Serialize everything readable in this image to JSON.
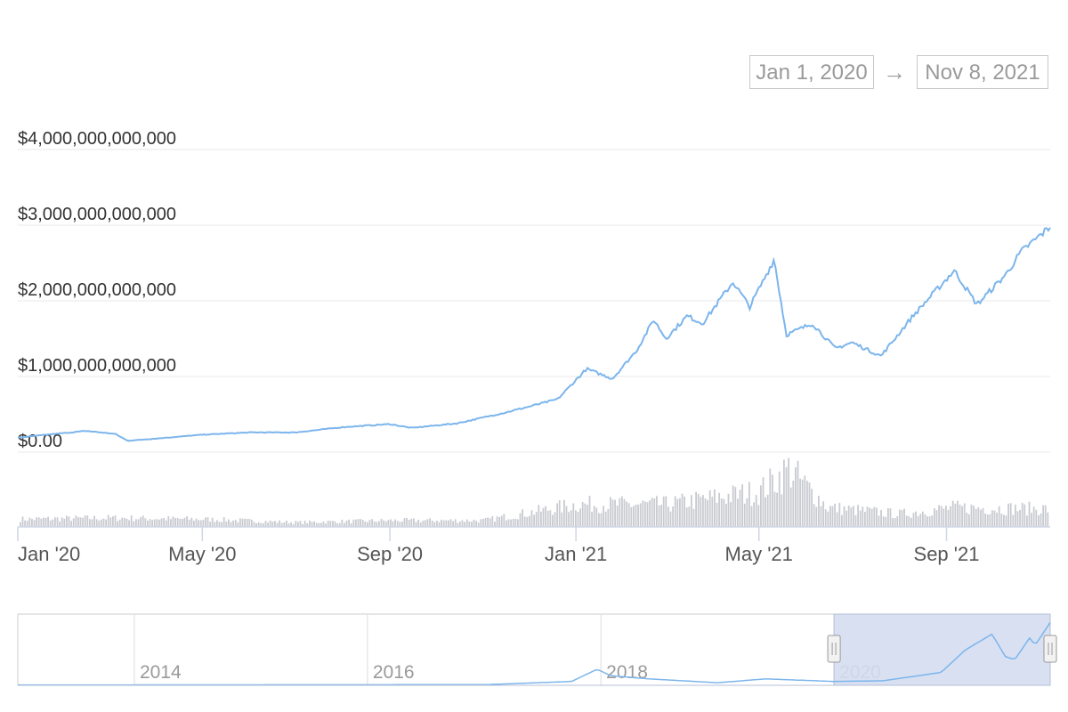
{
  "range_selector": {
    "start": "Jan 1, 2020",
    "arrow": "→",
    "end": "Nov 8, 2021"
  },
  "chart_data": {
    "type": "line",
    "title": "",
    "xlabel": "",
    "ylabel": "",
    "x_range": [
      "2020-01-01",
      "2021-11-08"
    ],
    "ylim": [
      0,
      4000000000000
    ],
    "grid": true,
    "y_ticks": [
      "$0.00",
      "$1,000,000,000,000",
      "$2,000,000,000,000",
      "$3,000,000,000,000",
      "$4,000,000,000,000"
    ],
    "x_ticks": [
      "Jan '20",
      "May '20",
      "Sep '20",
      "Jan '21",
      "May '21",
      "Sep '21"
    ],
    "series": [
      {
        "color": "#7cb5ec",
        "points": [
          [
            "2020-01-01",
            190000000000
          ],
          [
            "2020-01-20",
            230000000000
          ],
          [
            "2020-02-15",
            280000000000
          ],
          [
            "2020-03-05",
            240000000000
          ],
          [
            "2020-03-13",
            150000000000
          ],
          [
            "2020-04-01",
            180000000000
          ],
          [
            "2020-05-01",
            230000000000
          ],
          [
            "2020-06-01",
            260000000000
          ],
          [
            "2020-07-01",
            260000000000
          ],
          [
            "2020-08-01",
            330000000000
          ],
          [
            "2020-09-01",
            370000000000
          ],
          [
            "2020-09-15",
            320000000000
          ],
          [
            "2020-10-15",
            380000000000
          ],
          [
            "2020-11-15",
            520000000000
          ],
          [
            "2020-12-01",
            600000000000
          ],
          [
            "2020-12-20",
            700000000000
          ],
          [
            "2021-01-08",
            1100000000000
          ],
          [
            "2021-01-25",
            970000000000
          ],
          [
            "2021-02-10",
            1350000000000
          ],
          [
            "2021-02-21",
            1750000000000
          ],
          [
            "2021-03-01",
            1500000000000
          ],
          [
            "2021-03-15",
            1800000000000
          ],
          [
            "2021-03-25",
            1700000000000
          ],
          [
            "2021-04-14",
            2250000000000
          ],
          [
            "2021-04-25",
            1920000000000
          ],
          [
            "2021-05-11",
            2550000000000
          ],
          [
            "2021-05-19",
            1550000000000
          ],
          [
            "2021-06-05",
            1700000000000
          ],
          [
            "2021-06-20",
            1370000000000
          ],
          [
            "2021-07-01",
            1450000000000
          ],
          [
            "2021-07-20",
            1270000000000
          ],
          [
            "2021-08-10",
            1800000000000
          ],
          [
            "2021-09-06",
            2400000000000
          ],
          [
            "2021-09-21",
            1950000000000
          ],
          [
            "2021-10-10",
            2350000000000
          ],
          [
            "2021-10-20",
            2650000000000
          ],
          [
            "2021-11-08",
            2980000000000
          ]
        ]
      }
    ],
    "volume": {
      "color": "#c9cbd1",
      "points": [
        [
          "2020-01-01",
          0.12
        ],
        [
          "2020-03-01",
          0.14
        ],
        [
          "2020-05-01",
          0.12
        ],
        [
          "2020-07-01",
          0.07
        ],
        [
          "2020-09-01",
          0.1
        ],
        [
          "2020-11-01",
          0.1
        ],
        [
          "2021-01-01",
          0.35
        ],
        [
          "2021-03-01",
          0.35
        ],
        [
          "2021-05-01",
          0.55
        ],
        [
          "2021-05-20",
          0.9
        ],
        [
          "2021-06-15",
          0.3
        ],
        [
          "2021-08-01",
          0.2
        ],
        [
          "2021-09-05",
          0.3
        ],
        [
          "2021-11-08",
          0.28
        ]
      ]
    },
    "navigator": {
      "x_ticks": [
        "2014",
        "2016",
        "2018",
        "2020"
      ],
      "selected": [
        "2020-01-01",
        "2021-11-08"
      ],
      "series_color": "#7cb5ec",
      "selection_color": "#d5ddef",
      "points": [
        [
          "2013-01-01",
          0.005
        ],
        [
          "2017-01-01",
          0.01
        ],
        [
          "2017-10-01",
          0.06
        ],
        [
          "2017-12-20",
          0.25
        ],
        [
          "2018-02-01",
          0.15
        ],
        [
          "2018-06-01",
          0.1
        ],
        [
          "2019-01-01",
          0.04
        ],
        [
          "2019-06-01",
          0.1
        ],
        [
          "2020-01-01",
          0.06
        ],
        [
          "2020-06-01",
          0.07
        ],
        [
          "2020-12-01",
          0.2
        ],
        [
          "2021-02-15",
          0.55
        ],
        [
          "2021-05-10",
          0.8
        ],
        [
          "2021-06-20",
          0.45
        ],
        [
          "2021-07-20",
          0.4
        ],
        [
          "2021-09-06",
          0.75
        ],
        [
          "2021-09-21",
          0.62
        ],
        [
          "2021-11-08",
          0.98
        ]
      ]
    }
  }
}
